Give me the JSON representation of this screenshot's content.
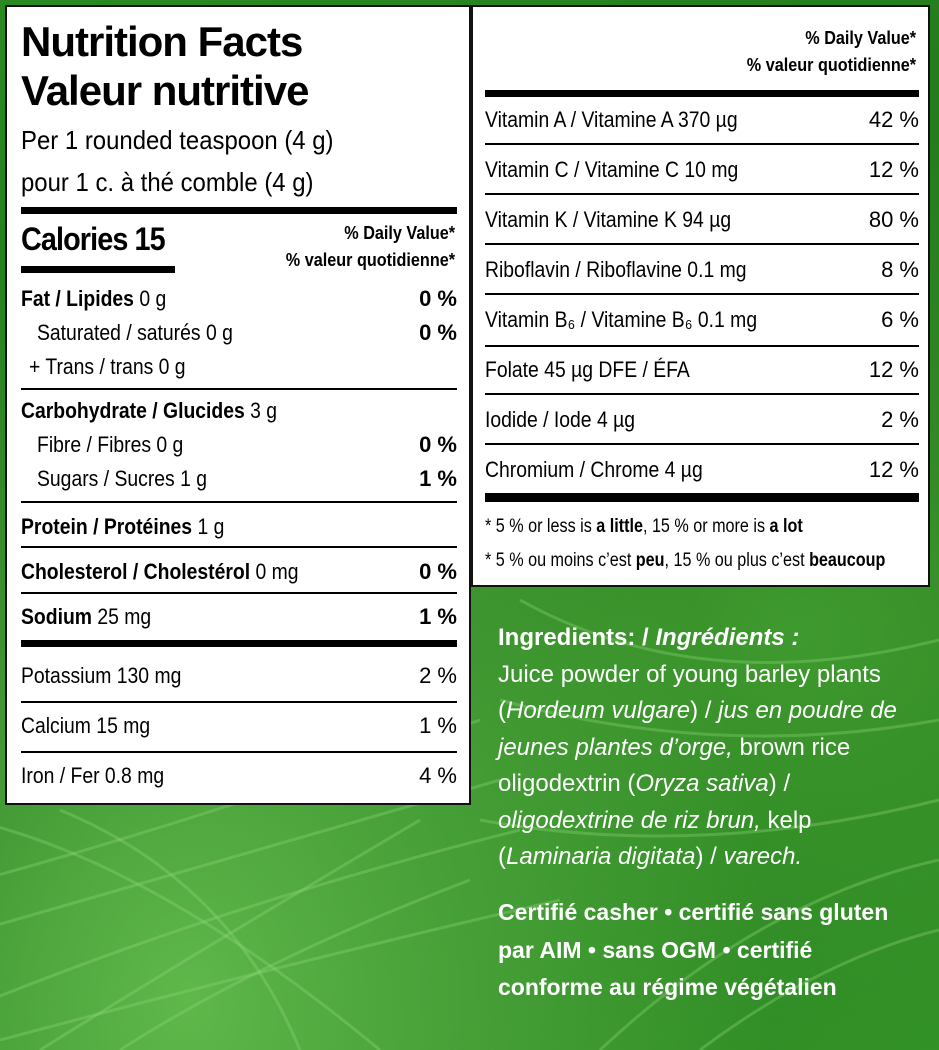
{
  "title_en": "Nutrition Facts",
  "title_fr": "Valeur nutritive",
  "serving_en": "Per 1 rounded teaspoon (4 g)",
  "serving_fr": "pour 1 c. à thé comble (4 g)",
  "calories_label": "Calories 15",
  "dv_en": "% Daily Value*",
  "dv_fr": "% valeur quotidienne*",
  "fat": {
    "label": "Fat / Lipides",
    "amount": " 0 g",
    "pct": "0 %"
  },
  "saturated": {
    "label": "Saturated / saturés 0 g",
    "pct": "0 %"
  },
  "trans": {
    "label": "+ Trans / trans 0 g"
  },
  "carb": {
    "label": "Carbohydrate / Glucides",
    "amount": " 3 g"
  },
  "fibre": {
    "label": "Fibre / Fibres 0 g",
    "pct": "0 %"
  },
  "sugars": {
    "label": "Sugars / Sucres 1 g",
    "pct": "1 %"
  },
  "protein": {
    "label": "Protein / Protéines",
    "amount": " 1 g"
  },
  "cholesterol": {
    "label": "Cholesterol / Cholestérol",
    "amount": " 0 mg",
    "pct": "0 %"
  },
  "sodium": {
    "label": "Sodium",
    "amount": " 25 mg",
    "pct": "1 %"
  },
  "potassium": {
    "label": "Potassium 130 mg",
    "pct": "2 %"
  },
  "calcium": {
    "label": "Calcium 15 mg",
    "pct": "1 %"
  },
  "iron": {
    "label": "Iron / Fer 0.8 mg",
    "pct": "4 %"
  },
  "vitamins": [
    {
      "label": "Vitamin A / Vitamine A 370 µg",
      "pct": "42 %"
    },
    {
      "label": "Vitamin C / Vitamine C 10 mg",
      "pct": "12 %"
    },
    {
      "label": "Vitamin K / Vitamine K 94 µg",
      "pct": "80 %"
    },
    {
      "label": "Riboflavin / Riboflavine 0.1 mg",
      "pct": "8 %"
    },
    {
      "label": "Vitamin B₆ / Vitamine B₆ 0.1 mg",
      "pct": "6 %"
    },
    {
      "label": "Folate 45 µg DFE / ÉFA",
      "pct": "12 %"
    },
    {
      "label": "Iodide / Iode 4 µg",
      "pct": "2 %"
    },
    {
      "label": "Chromium / Chrome 4 µg",
      "pct": "12 %"
    }
  ],
  "footnote_en": {
    "a": "* 5 % or less is ",
    "b": "a little",
    "c": ", 15 % or more is ",
    "d": "a lot"
  },
  "footnote_fr": {
    "a": "* 5 % ou moins c’est ",
    "b": "peu",
    "c": ", 15 % ou plus c’est ",
    "d": "beaucoup"
  },
  "ingredients": {
    "heading_en": "Ingredients: / ",
    "heading_fr": "Ingrédients :",
    "t1": "Juice powder of young barley plants  (",
    "t2": "Hordeum vulgare",
    "t3": ") / ",
    "t4": "jus en poudre de jeunes plantes d’orge,",
    "t5": " brown rice oligodextrin (",
    "t6": "Oryza sativa",
    "t7": ") / ",
    "t8": "oligodextrine de riz brun,",
    "t9": " kelp (",
    "t10": "Laminaria digitata",
    "t11": ") / ",
    "t12": "varech."
  },
  "certification": "Certifié casher • certifié sans gluten par AIM • sans OGM • certifié conforme au régime végétalien",
  "colors": {
    "background": "#1f7a1c",
    "panel": "#ffffff",
    "text": "#000000"
  }
}
